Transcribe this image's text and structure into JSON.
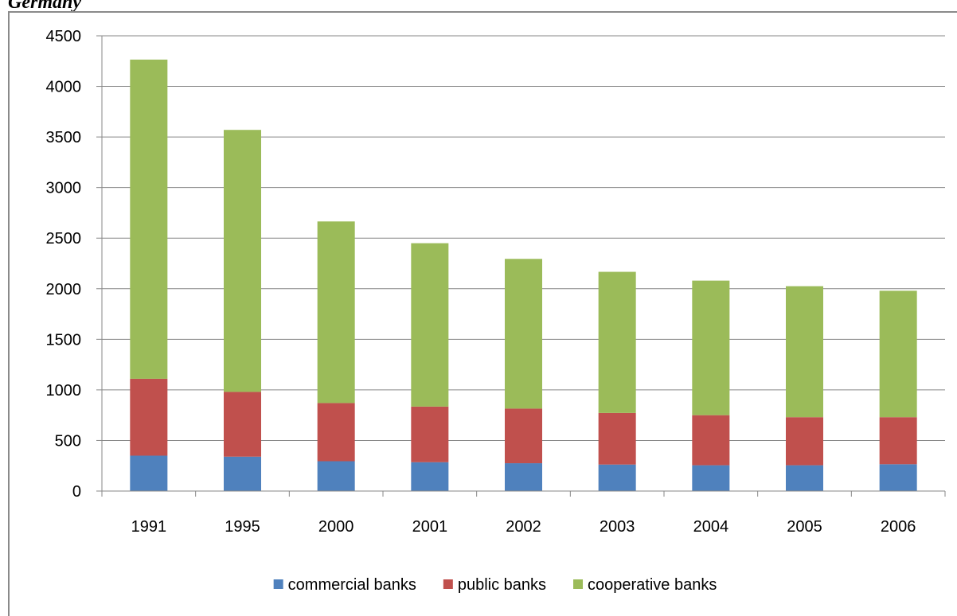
{
  "page": {
    "heading": "Germany"
  },
  "chart_data": {
    "type": "bar",
    "stacked": true,
    "categories": [
      "1991",
      "1995",
      "2000",
      "2001",
      "2002",
      "2003",
      "2004",
      "2005",
      "2006"
    ],
    "series": [
      {
        "name": "commercial banks",
        "color": "#4F81BD",
        "values": [
          350,
          340,
          295,
          285,
          275,
          262,
          255,
          255,
          265
        ]
      },
      {
        "name": "public banks",
        "color": "#C0504D",
        "values": [
          760,
          640,
          575,
          550,
          540,
          510,
          495,
          475,
          465
        ]
      },
      {
        "name": "cooperative banks",
        "color": "#9BBB59",
        "values": [
          3155,
          2590,
          1795,
          1615,
          1480,
          1395,
          1330,
          1295,
          1250
        ]
      }
    ],
    "ylim": [
      0,
      4500
    ],
    "yticks": [
      0,
      500,
      1000,
      1500,
      2000,
      2500,
      3000,
      3500,
      4000,
      4500
    ],
    "grid": true,
    "legend_position": "bottom"
  }
}
